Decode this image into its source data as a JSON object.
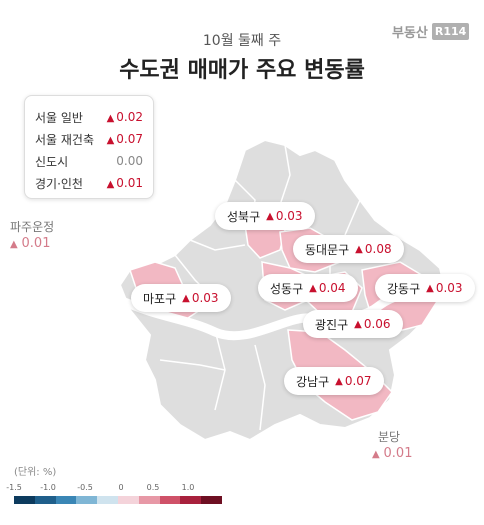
{
  "header": {
    "subtitle": "10월 둘째 주",
    "title": "수도권 매매가 주요 변동률",
    "logo_text": "부동산",
    "logo_badge": "R114"
  },
  "summary": [
    {
      "label": "서울 일반",
      "value": "0.02",
      "up": true
    },
    {
      "label": "서울 재건축",
      "value": "0.07",
      "up": true
    },
    {
      "label": "신도시",
      "value": "0.00",
      "up": false
    },
    {
      "label": "경기·인천",
      "value": "0.01",
      "up": true
    }
  ],
  "districts": [
    {
      "name": "성북구",
      "value": "0.03"
    },
    {
      "name": "동대문구",
      "value": "0.08"
    },
    {
      "name": "마포구",
      "value": "0.03"
    },
    {
      "name": "성동구",
      "value": "0.04"
    },
    {
      "name": "강동구",
      "value": "0.03"
    },
    {
      "name": "광진구",
      "value": "0.06"
    },
    {
      "name": "강남구",
      "value": "0.07"
    }
  ],
  "outer": [
    {
      "name": "파주운정",
      "value": "0.01"
    },
    {
      "name": "분당",
      "value": "0.01"
    }
  ],
  "scale": {
    "unit": "(단위: %)",
    "ticks": [
      "-1.5",
      "-1.0",
      "-0.5",
      "0",
      "0.5",
      "1.0"
    ],
    "colors": [
      "#0d3b5e",
      "#1f5f8b",
      "#3a86b5",
      "#7fb6d5",
      "#cfe3ee",
      "#f4d3da",
      "#e798a6",
      "#cf5168",
      "#a8213d",
      "#6e0f22"
    ]
  },
  "colors": {
    "rise": "#c8102e",
    "map_base": "#dedede",
    "map_highlight": "#f2b8c3",
    "river": "#ffffff"
  }
}
